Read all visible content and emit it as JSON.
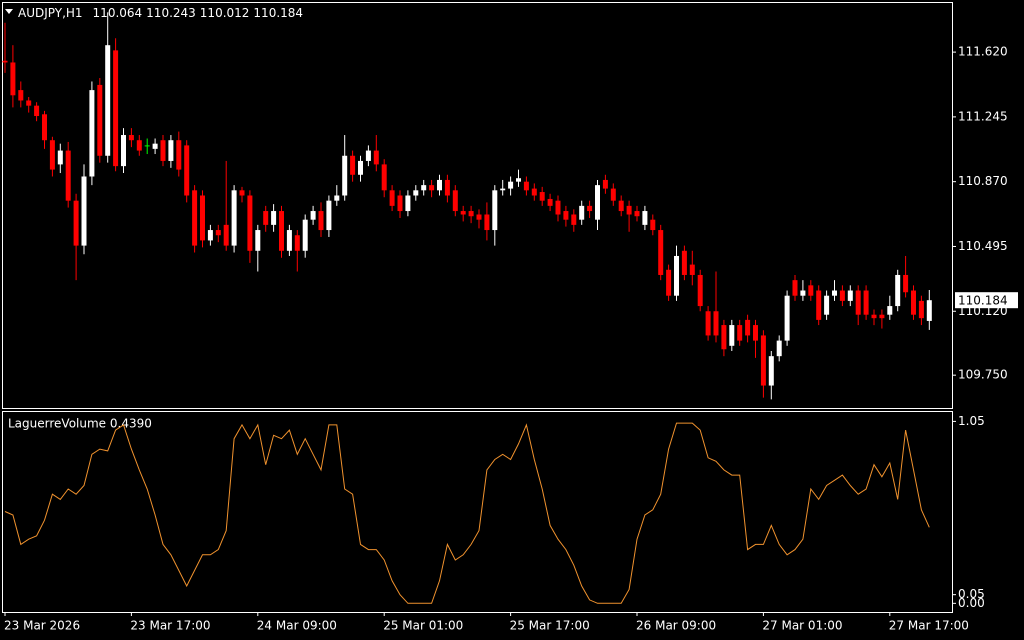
{
  "chart_data": [
    {
      "type": "candlestick",
      "title": "AUDJPY,H1",
      "categories": [
        "23 Mar 2026",
        null,
        null,
        null,
        null,
        null,
        null,
        null,
        null,
        null,
        null,
        null,
        null,
        null,
        null,
        null,
        "23 Mar 17:00",
        null,
        null,
        null,
        null,
        null,
        null,
        null,
        null,
        null,
        null,
        null,
        null,
        null,
        null,
        null,
        "24 Mar 09:00",
        null,
        null,
        null,
        null,
        null,
        null,
        null,
        null,
        null,
        null,
        null,
        null,
        null,
        null,
        null,
        "25 Mar 01:00",
        null,
        null,
        null,
        null,
        null,
        null,
        null,
        null,
        null,
        null,
        null,
        null,
        null,
        null,
        null,
        "25 Mar 17:00",
        null,
        null,
        null,
        null,
        null,
        null,
        null,
        null,
        null,
        null,
        null,
        null,
        null,
        null,
        null,
        "26 Mar 09:00",
        null,
        null,
        null,
        null,
        null,
        null,
        null,
        null,
        null,
        null,
        null,
        null,
        null,
        null,
        null,
        "27 Mar 01:00",
        null,
        null,
        null,
        null,
        null,
        null,
        null,
        null,
        null,
        null,
        null,
        null,
        null,
        null,
        null,
        "27 Mar 17:00",
        null,
        null,
        null,
        null,
        null
      ],
      "open": [
        111.57,
        111.56,
        111.4,
        111.34,
        111.31,
        111.26,
        111.11,
        110.97,
        111.05,
        110.76,
        110.5,
        110.9,
        111.43,
        111.02,
        111.63,
        110.96,
        111.14,
        111.11,
        111.08,
        111.06,
        111.11,
        110.99,
        111.11,
        111.08,
        110.82,
        110.79,
        110.53,
        110.59,
        110.62,
        110.5,
        110.82,
        110.79,
        110.47,
        110.7,
        110.62,
        110.7,
        110.47,
        110.56,
        110.47,
        110.65,
        110.7,
        110.59,
        110.76,
        110.79,
        111.02,
        110.91,
        110.99,
        111.05,
        110.97,
        110.82,
        110.79,
        110.7,
        110.79,
        110.82,
        110.85,
        110.82,
        110.88,
        110.82,
        110.7,
        110.7,
        110.68,
        110.68,
        110.59,
        110.82,
        110.83,
        110.87,
        110.87,
        110.83,
        110.81,
        110.77,
        110.76,
        110.7,
        110.68,
        110.65,
        110.73,
        110.65,
        110.88,
        110.83,
        110.76,
        110.73,
        110.7,
        110.62,
        110.65,
        110.59,
        110.36,
        110.21,
        110.47,
        110.39,
        110.33,
        110.12,
        110.12,
        110.04,
        109.92,
        110.04,
        110.07,
        110.04,
        109.98,
        109.69,
        109.86,
        109.95,
        110.3,
        110.21,
        110.27,
        110.24,
        110.1,
        110.21,
        110.24,
        110.18,
        110.24,
        110.24,
        110.1,
        110.1,
        110.1,
        110.15,
        110.33,
        110.24,
        110.18,
        110.064
      ],
      "high": [
        111.79,
        111.66,
        111.45,
        111.36,
        111.33,
        111.28,
        111.13,
        111.09,
        111.1,
        110.8,
        110.97,
        111.45,
        111.47,
        111.85,
        111.7,
        111.18,
        111.18,
        111.14,
        111.12,
        111.12,
        111.14,
        111.14,
        111.16,
        111.11,
        110.85,
        110.82,
        110.62,
        110.62,
        110.99,
        110.85,
        110.84,
        110.82,
        110.62,
        110.73,
        110.74,
        110.73,
        110.62,
        110.59,
        110.68,
        110.73,
        110.75,
        110.79,
        110.85,
        111.14,
        111.05,
        111.02,
        111.08,
        111.14,
        111.0,
        110.85,
        110.82,
        110.82,
        110.85,
        110.88,
        110.88,
        110.91,
        110.91,
        110.85,
        110.73,
        110.73,
        110.71,
        110.75,
        110.85,
        110.88,
        110.9,
        110.94,
        110.9,
        110.86,
        110.84,
        110.8,
        110.79,
        110.73,
        110.71,
        110.76,
        110.76,
        110.88,
        110.91,
        110.86,
        110.79,
        110.76,
        110.73,
        110.73,
        110.68,
        110.62,
        110.39,
        110.5,
        110.5,
        110.47,
        110.36,
        110.15,
        110.35,
        110.07,
        110.07,
        110.07,
        110.1,
        110.07,
        110.01,
        109.89,
        109.98,
        110.24,
        110.33,
        110.3,
        110.3,
        110.27,
        110.24,
        110.3,
        110.27,
        110.27,
        110.27,
        110.27,
        110.13,
        110.13,
        110.21,
        110.36,
        110.44,
        110.27,
        110.21,
        110.243
      ],
      "low": [
        111.5,
        111.3,
        111.3,
        111.27,
        111.22,
        111.06,
        110.9,
        110.92,
        110.72,
        110.3,
        110.45,
        110.85,
        110.98,
        110.98,
        110.93,
        110.92,
        111.07,
        111.02,
        111.03,
        111.03,
        110.96,
        110.95,
        110.9,
        110.75,
        110.46,
        110.49,
        110.5,
        110.52,
        110.47,
        110.46,
        110.75,
        110.4,
        110.35,
        110.58,
        110.58,
        110.43,
        110.44,
        110.35,
        110.43,
        110.62,
        110.55,
        110.55,
        110.73,
        110.76,
        110.87,
        110.87,
        110.96,
        110.93,
        110.78,
        110.7,
        110.66,
        110.67,
        110.76,
        110.79,
        110.78,
        110.79,
        110.75,
        110.67,
        110.64,
        110.63,
        110.6,
        110.53,
        110.5,
        110.79,
        110.79,
        110.84,
        110.79,
        110.76,
        110.73,
        110.7,
        110.64,
        110.61,
        110.58,
        110.62,
        110.66,
        110.59,
        110.8,
        110.73,
        110.67,
        110.58,
        110.64,
        110.59,
        110.56,
        110.3,
        110.18,
        110.18,
        110.3,
        110.27,
        110.12,
        109.95,
        109.94,
        109.86,
        109.89,
        109.92,
        109.94,
        109.85,
        109.62,
        109.61,
        109.83,
        109.92,
        110.18,
        110.18,
        110.18,
        110.04,
        110.07,
        110.18,
        110.15,
        110.15,
        110.04,
        110.07,
        110.04,
        110.02,
        110.07,
        110.12,
        110.2,
        110.07,
        110.04,
        110.012
      ],
      "close": [
        111.56,
        111.37,
        111.34,
        111.31,
        111.25,
        111.11,
        110.94,
        111.05,
        110.76,
        110.5,
        110.9,
        111.4,
        111.02,
        111.66,
        110.96,
        111.14,
        111.11,
        111.05,
        111.08,
        111.09,
        110.99,
        111.11,
        110.94,
        110.79,
        110.5,
        110.53,
        110.59,
        110.56,
        110.5,
        110.82,
        110.79,
        110.47,
        110.59,
        110.62,
        110.7,
        110.47,
        110.59,
        110.47,
        110.65,
        110.7,
        110.59,
        110.76,
        110.79,
        111.02,
        110.91,
        110.99,
        111.05,
        110.97,
        110.82,
        110.73,
        110.7,
        110.79,
        110.82,
        110.85,
        110.82,
        110.88,
        110.79,
        110.7,
        110.68,
        110.67,
        110.65,
        110.59,
        110.82,
        110.83,
        110.87,
        110.89,
        110.82,
        110.79,
        110.76,
        110.73,
        110.68,
        110.65,
        110.62,
        110.73,
        110.7,
        110.85,
        110.83,
        110.76,
        110.7,
        110.68,
        110.67,
        110.7,
        110.59,
        110.33,
        110.21,
        110.44,
        110.33,
        110.33,
        110.15,
        109.98,
        109.98,
        109.9,
        110.04,
        109.95,
        109.98,
        109.95,
        109.69,
        109.86,
        109.95,
        110.21,
        110.21,
        110.24,
        110.21,
        110.07,
        110.21,
        110.24,
        110.18,
        110.24,
        110.1,
        110.1,
        110.08,
        110.08,
        110.15,
        110.33,
        110.23,
        110.1,
        110.08,
        110.184
      ],
      "colors": {
        "up": "#ffffff",
        "down": "#ff0000",
        "doji": "#00ff00"
      },
      "ylim": [
        109.56,
        111.91
      ],
      "yticks": [
        {
          "value": 111.62,
          "label": "111.620"
        },
        111.245,
        {
          "value": 110.87,
          "label": "110.870"
        },
        110.495,
        {
          "value": 110.12,
          "label": "110.120"
        },
        {
          "value": 109.75,
          "label": "109.750"
        }
      ]
    },
    {
      "type": "line",
      "title": "LaguerreVolume 0.4390",
      "color": "#f0922e",
      "values": [
        0.53,
        0.51,
        0.34,
        0.37,
        0.39,
        0.48,
        0.63,
        0.6,
        0.66,
        0.63,
        0.68,
        0.86,
        0.89,
        0.88,
        1.0,
        1.03,
        0.89,
        0.77,
        0.66,
        0.51,
        0.34,
        0.28,
        0.19,
        0.1,
        0.19,
        0.28,
        0.28,
        0.31,
        0.42,
        0.95,
        1.03,
        0.95,
        1.03,
        0.8,
        0.97,
        0.95,
        1.0,
        0.86,
        0.95,
        0.86,
        0.77,
        1.03,
        1.03,
        0.66,
        0.63,
        0.34,
        0.31,
        0.31,
        0.25,
        0.13,
        0.05,
        0,
        0,
        0,
        0,
        0.13,
        0.34,
        0.25,
        0.28,
        0.34,
        0.42,
        0.77,
        0.83,
        0.86,
        0.83,
        0.92,
        1.03,
        0.83,
        0.66,
        0.45,
        0.37,
        0.31,
        0.22,
        0.1,
        0.02,
        0,
        0,
        0,
        0,
        0.08,
        0.37,
        0.51,
        0.54,
        0.63,
        0.89,
        1.04,
        1.04,
        1.04,
        1.0,
        0.84,
        0.82,
        0.77,
        0.74,
        0.74,
        0.31,
        0.34,
        0.34,
        0.45,
        0.34,
        0.28,
        0.31,
        0.37,
        0.66,
        0.6,
        0.68,
        0.71,
        0.74,
        0.68,
        0.63,
        0.66,
        0.8,
        0.73,
        0.81,
        0.6,
        1.0,
        0.77,
        0.54,
        0.439
      ],
      "ylim": [
        -0.05,
        1.11
      ],
      "yticks": [
        1.05,
        0.05,
        {
          "value": 0,
          "label": "0.00"
        }
      ]
    }
  ]
}
